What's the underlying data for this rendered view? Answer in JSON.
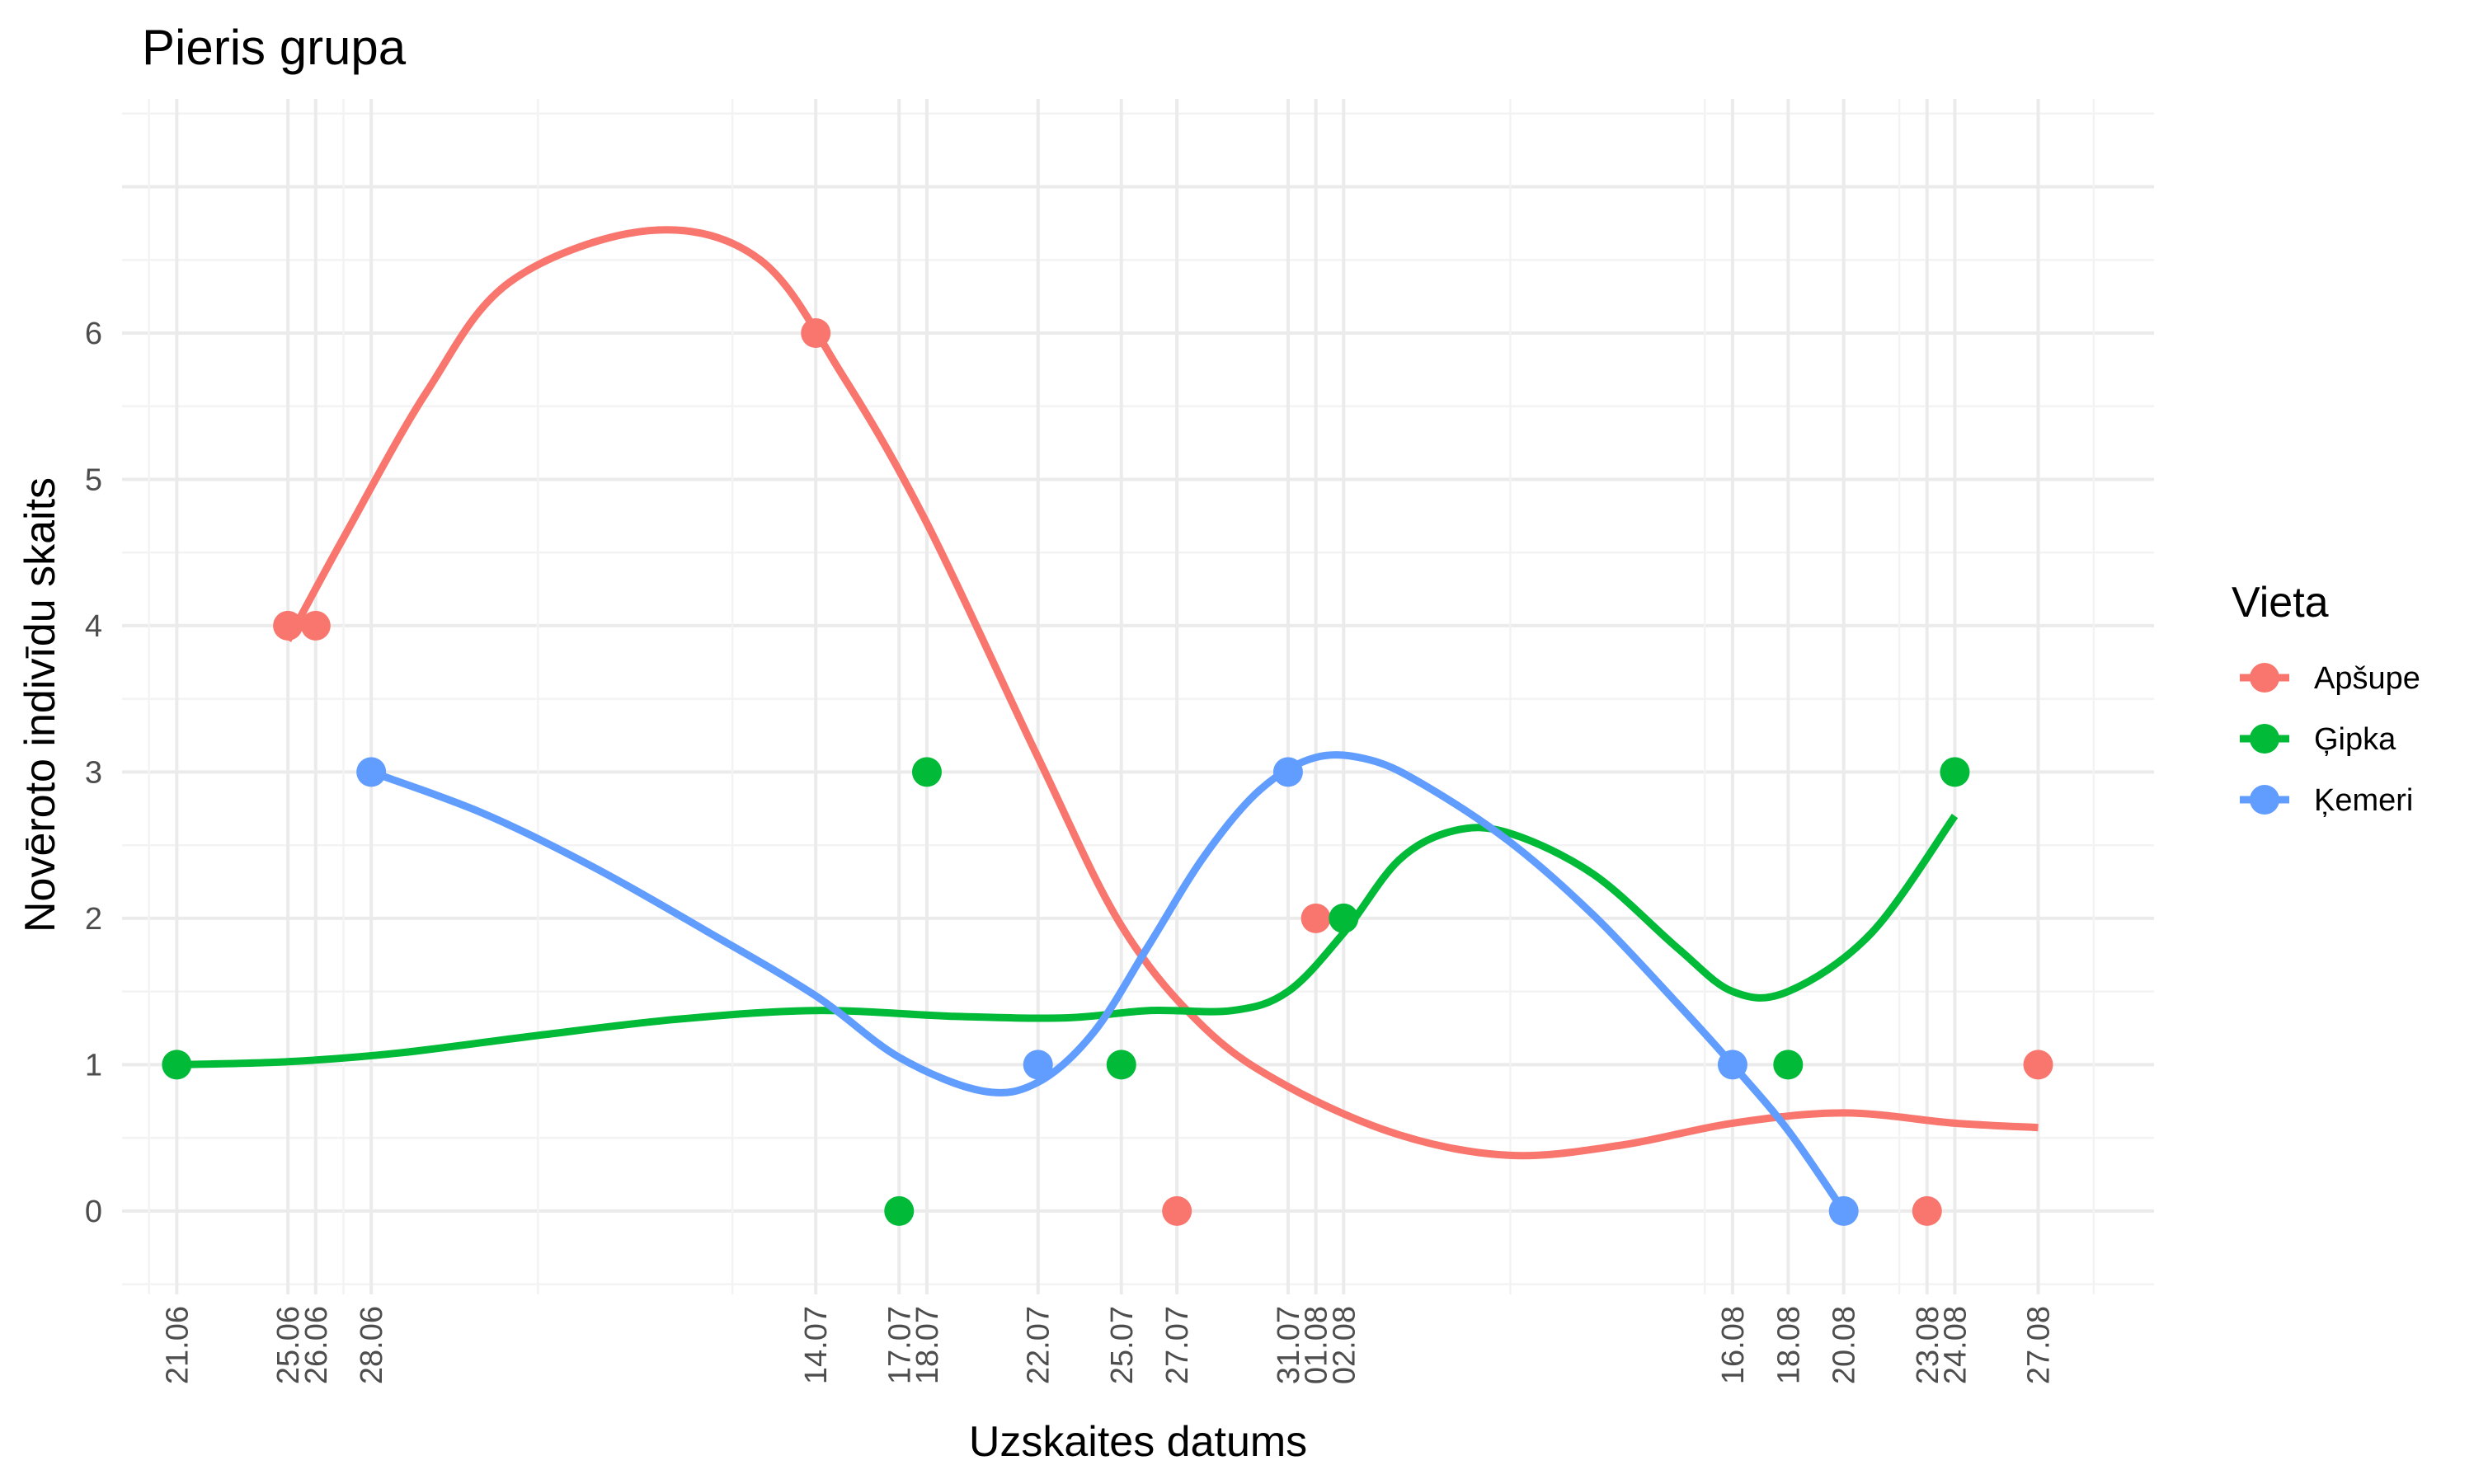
{
  "chart_data": {
    "type": "scatter",
    "title": "Pieris grupa",
    "xlabel": "Uzskaites datums",
    "ylabel": "Novēroto indivīdu skaits",
    "x_type": "day_of_year",
    "xlim": [
      170.03,
      243.17
    ],
    "ylim": [
      -0.57,
      7.6
    ],
    "y_ticks": [
      0,
      1,
      2,
      3,
      4,
      5,
      6
    ],
    "x_ticks": [
      {
        "day": 172,
        "label": "21.06"
      },
      {
        "day": 176,
        "label": "25.06"
      },
      {
        "day": 177,
        "label": "26.06"
      },
      {
        "day": 179,
        "label": "28.06"
      },
      {
        "day": 195,
        "label": "14.07"
      },
      {
        "day": 198,
        "label": "17.07"
      },
      {
        "day": 199,
        "label": "18.07"
      },
      {
        "day": 203,
        "label": "22.07"
      },
      {
        "day": 206,
        "label": "25.07"
      },
      {
        "day": 208,
        "label": "27.07"
      },
      {
        "day": 212,
        "label": "31.07"
      },
      {
        "day": 213,
        "label": "01.08"
      },
      {
        "day": 214,
        "label": "02.08"
      },
      {
        "day": 228,
        "label": "16.08"
      },
      {
        "day": 230,
        "label": "18.08"
      },
      {
        "day": 232,
        "label": "20.08"
      },
      {
        "day": 235,
        "label": "23.08"
      },
      {
        "day": 236,
        "label": "24.08"
      },
      {
        "day": 239,
        "label": "27.08"
      }
    ],
    "legend": {
      "title": "Vieta",
      "position": "right"
    },
    "series": [
      {
        "name": "Apšupe",
        "color": "#f8766d",
        "points": [
          {
            "x": 176,
            "y": 4
          },
          {
            "x": 177,
            "y": 4
          },
          {
            "x": 195,
            "y": 6
          },
          {
            "x": 208,
            "y": 0
          },
          {
            "x": 213,
            "y": 2
          },
          {
            "x": 235,
            "y": 0
          },
          {
            "x": 239,
            "y": 1
          }
        ],
        "smooth": [
          {
            "x": 176,
            "y": 3.9
          },
          {
            "x": 178,
            "y": 4.6
          },
          {
            "x": 181,
            "y": 5.6
          },
          {
            "x": 184,
            "y": 6.35
          },
          {
            "x": 189,
            "y": 6.7
          },
          {
            "x": 193,
            "y": 6.5
          },
          {
            "x": 196,
            "y": 5.7
          },
          {
            "x": 199,
            "y": 4.7
          },
          {
            "x": 203,
            "y": 3.1
          },
          {
            "x": 206,
            "y": 1.95
          },
          {
            "x": 209,
            "y": 1.25
          },
          {
            "x": 212,
            "y": 0.85
          },
          {
            "x": 216,
            "y": 0.52
          },
          {
            "x": 220,
            "y": 0.38
          },
          {
            "x": 224,
            "y": 0.45
          },
          {
            "x": 228,
            "y": 0.6
          },
          {
            "x": 232,
            "y": 0.67
          },
          {
            "x": 236,
            "y": 0.6
          },
          {
            "x": 239,
            "y": 0.57
          }
        ]
      },
      {
        "name": "Ģipka",
        "color": "#00ba38",
        "points": [
          {
            "x": 172,
            "y": 1
          },
          {
            "x": 198,
            "y": 0
          },
          {
            "x": 199,
            "y": 3
          },
          {
            "x": 206,
            "y": 1
          },
          {
            "x": 214,
            "y": 2
          },
          {
            "x": 230,
            "y": 1
          },
          {
            "x": 236,
            "y": 3
          }
        ],
        "smooth": [
          {
            "x": 172,
            "y": 1.0
          },
          {
            "x": 176,
            "y": 1.02
          },
          {
            "x": 180,
            "y": 1.08
          },
          {
            "x": 185,
            "y": 1.2
          },
          {
            "x": 190,
            "y": 1.31
          },
          {
            "x": 195,
            "y": 1.37
          },
          {
            "x": 200,
            "y": 1.33
          },
          {
            "x": 204,
            "y": 1.32
          },
          {
            "x": 207,
            "y": 1.37
          },
          {
            "x": 210,
            "y": 1.37
          },
          {
            "x": 212,
            "y": 1.5
          },
          {
            "x": 214,
            "y": 1.9
          },
          {
            "x": 216,
            "y": 2.4
          },
          {
            "x": 218,
            "y": 2.6
          },
          {
            "x": 220,
            "y": 2.58
          },
          {
            "x": 223,
            "y": 2.3
          },
          {
            "x": 226,
            "y": 1.8
          },
          {
            "x": 228,
            "y": 1.5
          },
          {
            "x": 230,
            "y": 1.5
          },
          {
            "x": 233,
            "y": 1.9
          },
          {
            "x": 236,
            "y": 2.7
          }
        ]
      },
      {
        "name": "Ķemeri",
        "color": "#619cff",
        "points": [
          {
            "x": 179,
            "y": 3
          },
          {
            "x": 203,
            "y": 1
          },
          {
            "x": 212,
            "y": 3
          },
          {
            "x": 228,
            "y": 1
          },
          {
            "x": 232,
            "y": 0
          }
        ],
        "smooth": [
          {
            "x": 179,
            "y": 3.0
          },
          {
            "x": 183,
            "y": 2.72
          },
          {
            "x": 187,
            "y": 2.35
          },
          {
            "x": 191,
            "y": 1.92
          },
          {
            "x": 195,
            "y": 1.47
          },
          {
            "x": 198,
            "y": 1.05
          },
          {
            "x": 201,
            "y": 0.82
          },
          {
            "x": 203,
            "y": 0.88
          },
          {
            "x": 205,
            "y": 1.22
          },
          {
            "x": 207,
            "y": 1.82
          },
          {
            "x": 209,
            "y": 2.43
          },
          {
            "x": 211,
            "y": 2.88
          },
          {
            "x": 213,
            "y": 3.1
          },
          {
            "x": 215,
            "y": 3.08
          },
          {
            "x": 217,
            "y": 2.9
          },
          {
            "x": 220,
            "y": 2.52
          },
          {
            "x": 223,
            "y": 2.02
          },
          {
            "x": 226,
            "y": 1.42
          },
          {
            "x": 228,
            "y": 1.0
          },
          {
            "x": 230,
            "y": 0.55
          },
          {
            "x": 232,
            "y": 0.0
          }
        ]
      }
    ]
  }
}
